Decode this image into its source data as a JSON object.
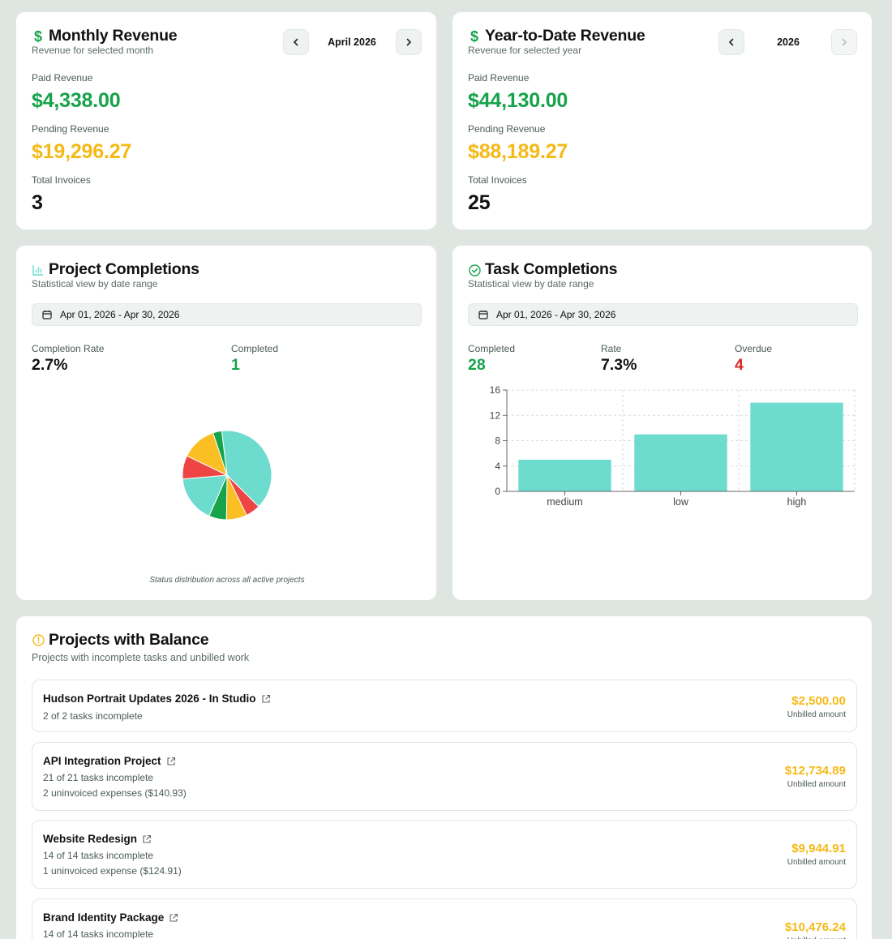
{
  "monthly_revenue": {
    "title": "Monthly Revenue",
    "subtitle": "Revenue for selected month",
    "period_label": "April 2026",
    "paid_label": "Paid Revenue",
    "paid_value": "$4,338.00",
    "pending_label": "Pending Revenue",
    "pending_value": "$19,296.27",
    "invoices_label": "Total Invoices",
    "invoices_value": "3",
    "icon": "dollar-icon"
  },
  "ytd_revenue": {
    "title": "Year-to-Date Revenue",
    "subtitle": "Revenue for selected year",
    "period_label": "2026",
    "paid_label": "Paid Revenue",
    "paid_value": "$44,130.00",
    "pending_label": "Pending Revenue",
    "pending_value": "$88,189.27",
    "invoices_label": "Total Invoices",
    "invoices_value": "25",
    "icon": "dollar-icon"
  },
  "project_completions": {
    "title": "Project Completions",
    "subtitle": "Statistical view by date range",
    "date_range": "Apr 01, 2026 - Apr 30, 2026",
    "completion_rate_label": "Completion Rate",
    "completion_rate_value": "2.7%",
    "completed_label": "Completed",
    "completed_value": "1",
    "caption": "Status distribution across all active projects",
    "icon": "bar-chart-icon",
    "pie": [
      {
        "value": 37,
        "color": "#6ddccf"
      },
      {
        "value": 5,
        "color": "#ef4444"
      },
      {
        "value": 7,
        "color": "#fbbf24"
      },
      {
        "value": 6,
        "color": "#16a34a"
      },
      {
        "value": 16,
        "color": "#6ddccf"
      },
      {
        "value": 8,
        "color": "#ef4444"
      },
      {
        "value": 12,
        "color": "#fbbf24"
      },
      {
        "value": 3,
        "color": "#16a34a"
      }
    ]
  },
  "task_completions": {
    "title": "Task Completions",
    "subtitle": "Statistical view by date range",
    "date_range": "Apr 01, 2026 - Apr 30, 2026",
    "completed_label": "Completed",
    "completed_value": "28",
    "rate_label": "Rate",
    "rate_value": "7.3%",
    "overdue_label": "Overdue",
    "overdue_value": "4",
    "icon": "check-circle-icon"
  },
  "chart_data": {
    "type": "bar",
    "categories": [
      "medium",
      "low",
      "high"
    ],
    "values": [
      5,
      9,
      14
    ],
    "ylim": [
      0,
      16
    ],
    "yticks": [
      "0",
      "4",
      "8",
      "12",
      "16"
    ],
    "grid": true,
    "color": "#6ddccf"
  },
  "projects_with_balance": {
    "title": "Projects with Balance",
    "subtitle": "Projects with incomplete tasks and unbilled work",
    "icon": "alert-circle-icon",
    "amount_label": "Unbilled amount",
    "items": [
      {
        "name": "Hudson Portrait Updates 2026 - In Studio",
        "tasks": "2 of 2 tasks incomplete",
        "expenses": "",
        "amount": "$2,500.00"
      },
      {
        "name": "API Integration Project",
        "tasks": "21 of 21 tasks incomplete",
        "expenses": "2 uninvoiced expenses ($140.93)",
        "amount": "$12,734.89"
      },
      {
        "name": "Website Redesign",
        "tasks": "14 of 14 tasks incomplete",
        "expenses": "1 uninvoiced expense ($124.91)",
        "amount": "$9,944.91"
      },
      {
        "name": "Brand Identity Package",
        "tasks": "14 of 14 tasks incomplete",
        "expenses": "",
        "amount": "$10,476.24"
      }
    ]
  }
}
